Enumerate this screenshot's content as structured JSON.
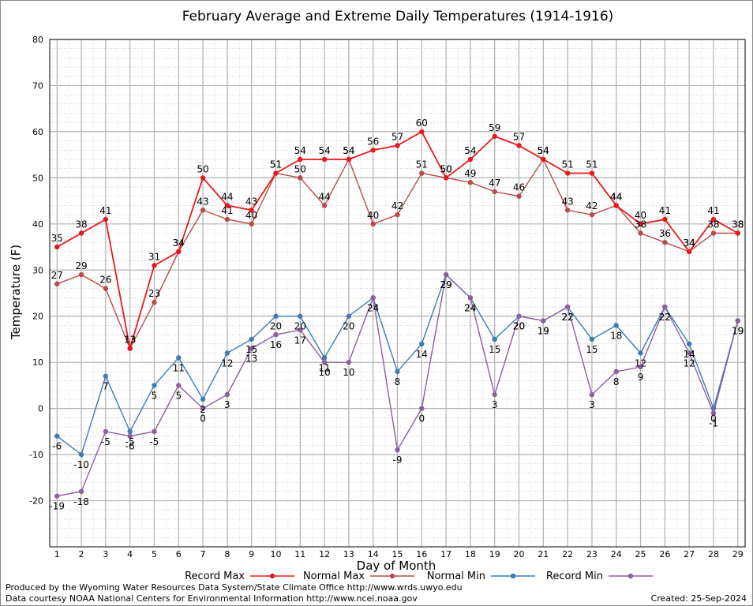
{
  "footer": {
    "left_line1": "Produced by the Wyoming Water Resources Data System/State Climate Office http://www.wrds.uwyo.edu",
    "left_line2": "Data courtesy NOAA National Centers for Environmental Information http://www.ncei.noaa.gov",
    "created": "Created:  25-Sep-2024"
  },
  "chart_data": {
    "type": "line",
    "title": "February Average and Extreme Daily Temperatures (1914-1916)",
    "xlabel": "Day of Month",
    "ylabel": "Temperature (F)",
    "ylim": [
      -30,
      80
    ],
    "yticks": [
      -20,
      -10,
      0,
      10,
      20,
      30,
      40,
      50,
      60,
      70,
      80
    ],
    "xlim": [
      0.7,
      29.3
    ],
    "x": [
      1,
      2,
      3,
      4,
      5,
      6,
      7,
      8,
      9,
      10,
      11,
      12,
      13,
      14,
      15,
      16,
      17,
      18,
      19,
      20,
      21,
      22,
      23,
      24,
      25,
      26,
      27,
      28,
      29
    ],
    "grid": true,
    "legend_position": "bottom",
    "series": [
      {
        "name": "Record Max",
        "color": "#e8191e",
        "values": [
          35,
          38,
          41,
          13,
          31,
          34,
          50,
          44,
          43,
          51,
          54,
          54,
          54,
          56,
          57,
          60,
          50,
          54,
          59,
          57,
          54,
          51,
          51,
          44,
          40,
          41,
          34,
          41,
          38
        ]
      },
      {
        "name": "Normal Max",
        "color": "#b94a4a",
        "values": [
          27,
          29,
          26,
          13,
          23,
          34,
          43,
          41,
          40,
          51,
          50,
          44,
          54,
          40,
          42,
          51,
          50,
          49,
          47,
          46,
          54,
          43,
          42,
          44,
          38,
          36,
          34,
          38,
          38
        ]
      },
      {
        "name": "Normal Min",
        "color": "#3f7ab5",
        "values": [
          -6,
          -10,
          7,
          -5,
          5,
          11,
          2,
          12,
          15,
          20,
          20,
          11,
          20,
          24,
          8,
          14,
          29,
          24,
          15,
          20,
          19,
          22,
          15,
          18,
          12,
          22,
          14,
          0,
          19
        ]
      },
      {
        "name": "Record Min",
        "color": "#8b5fa0",
        "values": [
          -19,
          -18,
          -5,
          -6,
          -5,
          5,
          0,
          3,
          13,
          16,
          17,
          10,
          10,
          24,
          -9,
          0,
          29,
          24,
          3,
          20,
          19,
          22,
          3,
          8,
          9,
          22,
          12,
          -1,
          19
        ]
      }
    ]
  }
}
